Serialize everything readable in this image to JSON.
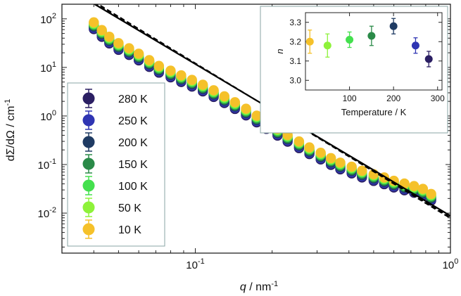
{
  "chart_data": [
    {
      "type": "scatter",
      "xlabel_var": "q",
      "xlabel_unit": " / nm",
      "xlabel_exp": "-1",
      "ylabel": "dΣ/dΩ / cm",
      "ylabel_exp": "-1",
      "x_scale": "log",
      "y_scale": "log",
      "xlim": [
        0.03,
        1.0
      ],
      "ylim": [
        0.0015,
        200
      ],
      "x_ticks": [
        {
          "base": "10",
          "exp": "-1",
          "value": 0.1
        },
        {
          "base": "10",
          "exp": "0",
          "value": 1.0
        }
      ],
      "y_ticks": [
        {
          "base": "10",
          "exp": "-2",
          "value": 0.01
        },
        {
          "base": "10",
          "exp": "-1",
          "value": 0.1
        },
        {
          "base": "10",
          "exp": "0",
          "value": 1
        },
        {
          "base": "10",
          "exp": "1",
          "value": 10
        },
        {
          "base": "10",
          "exp": "2",
          "value": 100
        }
      ],
      "legend_position": "bottom-left",
      "series": [
        {
          "name": "280 K",
          "color": "#2b1f63",
          "scale": 0.82
        },
        {
          "name": "250 K",
          "color": "#2f35b3",
          "scale": 0.87
        },
        {
          "name": "200 K",
          "color": "#1f3b63",
          "scale": 0.92
        },
        {
          "name": "150 K",
          "color": "#2a8a48",
          "scale": 0.97
        },
        {
          "name": "100 K",
          "color": "#44e04e",
          "scale": 1.03
        },
        {
          "name": "50 K",
          "color": "#8ef23a",
          "scale": 1.08
        },
        {
          "name": "10 K",
          "color": "#f5c12a",
          "scale": 1.13
        }
      ],
      "base_curve": {
        "q": [
          0.04,
          0.043,
          0.046,
          0.05,
          0.055,
          0.06,
          0.066,
          0.072,
          0.08,
          0.088,
          0.097,
          0.107,
          0.118,
          0.13,
          0.143,
          0.158,
          0.174,
          0.19,
          0.21,
          0.23,
          0.255,
          0.28,
          0.31,
          0.34,
          0.37,
          0.41,
          0.45,
          0.5,
          0.55,
          0.6,
          0.66,
          0.72,
          0.78,
          0.84
        ],
        "I": [
          75,
          52,
          38,
          28,
          22,
          17,
          12.5,
          9.5,
          7.6,
          6.1,
          4.9,
          3.9,
          3.0,
          2.25,
          1.7,
          1.25,
          0.9,
          0.66,
          0.48,
          0.36,
          0.265,
          0.2,
          0.155,
          0.12,
          0.097,
          0.08,
          0.066,
          0.056,
          0.048,
          0.041,
          0.036,
          0.032,
          0.028,
          0.022
        ]
      },
      "fit_lines": [
        {
          "style": "solid",
          "q": [
            0.04,
            1.0
          ],
          "I": [
            205,
            0.0088
          ]
        },
        {
          "style": "dashed",
          "q": [
            0.04,
            1.0
          ],
          "I": [
            215,
            0.0082
          ]
        },
        {
          "style": "dashed",
          "q": [
            0.04,
            1.0
          ],
          "I": [
            228,
            0.0078
          ]
        }
      ]
    },
    {
      "type": "scatter",
      "xlabel": "Temperature / K",
      "ylabel": "n",
      "xlim": [
        0,
        310
      ],
      "ylim": [
        2.95,
        3.35
      ],
      "x_ticks": [
        "100",
        "200",
        "300"
      ],
      "x_tick_values": [
        100,
        200,
        300
      ],
      "y_ticks": [
        "3.0",
        "3.1",
        "3.2",
        "3.3"
      ],
      "y_tick_values": [
        3.0,
        3.1,
        3.2,
        3.3
      ],
      "points": [
        {
          "T": 10,
          "n": 3.2,
          "err": 0.06,
          "color": "#f5c12a"
        },
        {
          "T": 50,
          "n": 3.18,
          "err": 0.06,
          "color": "#8ef23a"
        },
        {
          "T": 100,
          "n": 3.21,
          "err": 0.04,
          "color": "#44e04e"
        },
        {
          "T": 150,
          "n": 3.23,
          "err": 0.05,
          "color": "#2a8a48"
        },
        {
          "T": 200,
          "n": 3.28,
          "err": 0.04,
          "color": "#1f3b63"
        },
        {
          "T": 250,
          "n": 3.18,
          "err": 0.04,
          "color": "#2f35b3"
        },
        {
          "T": 280,
          "n": 3.11,
          "err": 0.04,
          "color": "#2b1f63"
        }
      ]
    }
  ]
}
